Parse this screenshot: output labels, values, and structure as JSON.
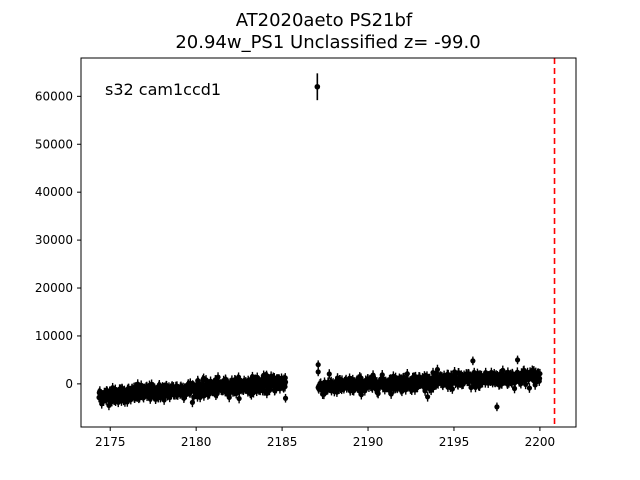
{
  "chart_data": {
    "type": "scatter",
    "title": "AT2020aeto  PS21bf",
    "subtitle": "20.94w_PS1 Unclassified z= -99.0",
    "annotation": "s32 cam1ccd1",
    "xlabel": "",
    "ylabel": "",
    "xlim": [
      2173.3,
      2202.1
    ],
    "ylim": [
      -9000,
      68000
    ],
    "xticks": [
      2175,
      2180,
      2185,
      2190,
      2195,
      2200
    ],
    "yticks": [
      0,
      10000,
      20000,
      30000,
      40000,
      50000,
      60000
    ],
    "grid": false,
    "marker_color": "#000000",
    "vline": {
      "x": 2200.85,
      "color": "#ff0000",
      "style": "dashed"
    },
    "outlier": {
      "x": 2187.05,
      "y": 62000,
      "yerr": 2800
    },
    "segments": [
      {
        "x_start": 2174.35,
        "x_end": 2185.2,
        "y_start": -2600,
        "y_end": 300,
        "scatter": 1300,
        "yerr": 1000
      },
      {
        "x_start": 2187.1,
        "x_end": 2200.0,
        "y_start": -600,
        "y_end": 1500,
        "scatter": 1300,
        "yerr": 1000
      }
    ],
    "extra_points": [
      {
        "x": 2187.1,
        "y": 4000
      },
      {
        "x": 2187.1,
        "y": 2500
      },
      {
        "x": 2196.1,
        "y": 4800
      },
      {
        "x": 2197.5,
        "y": -4800
      },
      {
        "x": 2198.7,
        "y": 5000
      },
      {
        "x": 2185.2,
        "y": -3000
      }
    ]
  }
}
